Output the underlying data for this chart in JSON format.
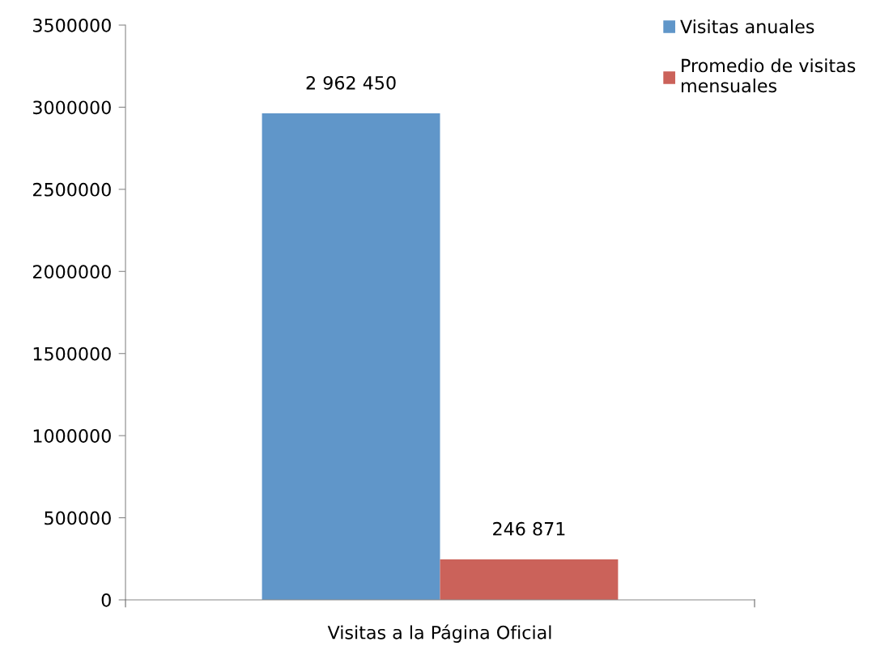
{
  "chart_data": {
    "type": "bar",
    "categories": [
      "Visitas a la Página Oficial"
    ],
    "series": [
      {
        "name": "Visitas anuales",
        "color": "#6096c9",
        "values": [
          2962450
        ],
        "value_labels": [
          "2 962 450"
        ]
      },
      {
        "name": "Promedio de visitas mensuales",
        "color": "#cb625a",
        "values": [
          246871
        ],
        "value_labels": [
          "246 871"
        ]
      }
    ],
    "ylim": [
      0,
      3500000
    ],
    "yticks": [
      0,
      500000,
      1000000,
      1500000,
      2000000,
      2500000,
      3000000,
      3500000
    ],
    "grid": false,
    "legend": "top right"
  }
}
